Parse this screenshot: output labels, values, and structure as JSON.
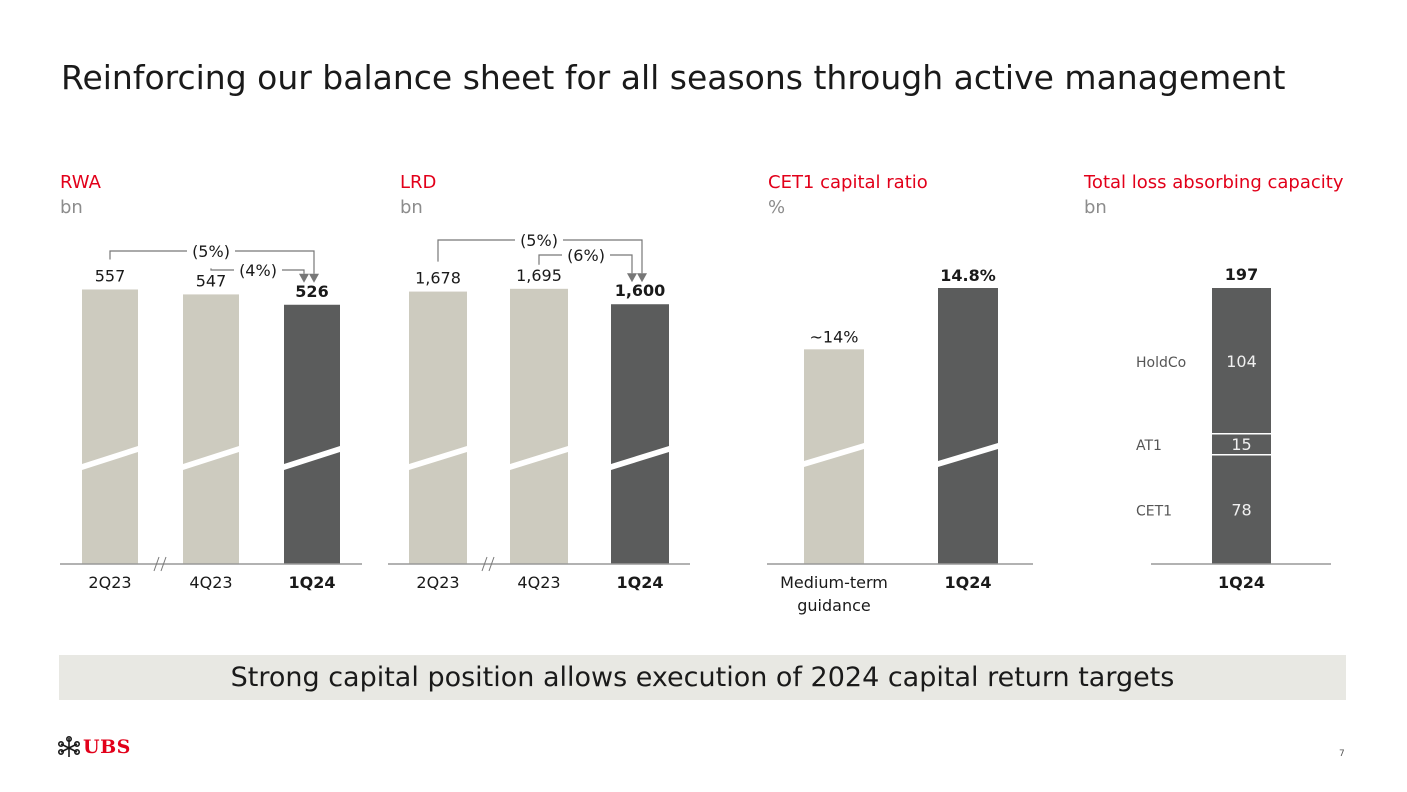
{
  "page": {
    "title": "Reinforcing our balance sheet for all seasons through active management",
    "banner": "Strong capital position allows execution of 2024 capital return targets",
    "logo_text": "UBS",
    "page_number": "7"
  },
  "colors": {
    "accent": "#e2001a",
    "bar_light": "#cdcbbf",
    "bar_dark": "#5b5c5c",
    "unit_grey": "#8c8c8c",
    "banner_bg": "#e8e8e3"
  },
  "chart_data": [
    {
      "id": "rwa",
      "type": "bar",
      "title": "RWA",
      "unit": "bn",
      "categories": [
        "2Q23",
        "4Q23",
        "1Q24"
      ],
      "values": [
        557,
        547,
        526
      ],
      "value_labels": [
        "557",
        "547",
        "526"
      ],
      "highlight": [
        false,
        false,
        true
      ],
      "axis_break_after": 0,
      "annotations": [
        {
          "text": "(5%)",
          "from": 0,
          "to": 2
        },
        {
          "text": "(4%)",
          "from": 1,
          "to": 2
        }
      ],
      "ylim": [
        0,
        560
      ],
      "xlabel": "",
      "ylabel": ""
    },
    {
      "id": "lrd",
      "type": "bar",
      "title": "LRD",
      "unit": "bn",
      "categories": [
        "2Q23",
        "4Q23",
        "1Q24"
      ],
      "values": [
        1678,
        1695,
        1600
      ],
      "value_labels": [
        "1,678",
        "1,695",
        "1,600"
      ],
      "highlight": [
        false,
        false,
        true
      ],
      "axis_break_after": 0,
      "annotations": [
        {
          "text": "(5%)",
          "from": 0,
          "to": 2
        },
        {
          "text": "(6%)",
          "from": 1,
          "to": 2
        }
      ],
      "ylim": [
        0,
        1700
      ],
      "xlabel": "",
      "ylabel": ""
    },
    {
      "id": "cet1",
      "type": "bar",
      "title": "CET1 capital ratio",
      "unit": "%",
      "categories": [
        "Medium-term guidance",
        "1Q24"
      ],
      "category_lines": [
        [
          "Medium-term",
          "guidance"
        ],
        [
          "1Q24"
        ]
      ],
      "values": [
        14.0,
        14.8
      ],
      "value_labels": [
        "~14%",
        "14.8%"
      ],
      "highlight": [
        false,
        true
      ],
      "ylim": [
        0,
        14.8
      ],
      "xlabel": "",
      "ylabel": ""
    },
    {
      "id": "tlac",
      "type": "bar",
      "stacked": true,
      "title": "Total loss absorbing capacity",
      "unit": "bn",
      "categories": [
        "1Q24"
      ],
      "series": [
        {
          "name": "CET1",
          "values": [
            78
          ]
        },
        {
          "name": "AT1",
          "values": [
            15
          ]
        },
        {
          "name": "HoldCo",
          "values": [
            104
          ]
        }
      ],
      "total": 197,
      "ylim": [
        0,
        197
      ],
      "xlabel": "",
      "ylabel": ""
    }
  ]
}
